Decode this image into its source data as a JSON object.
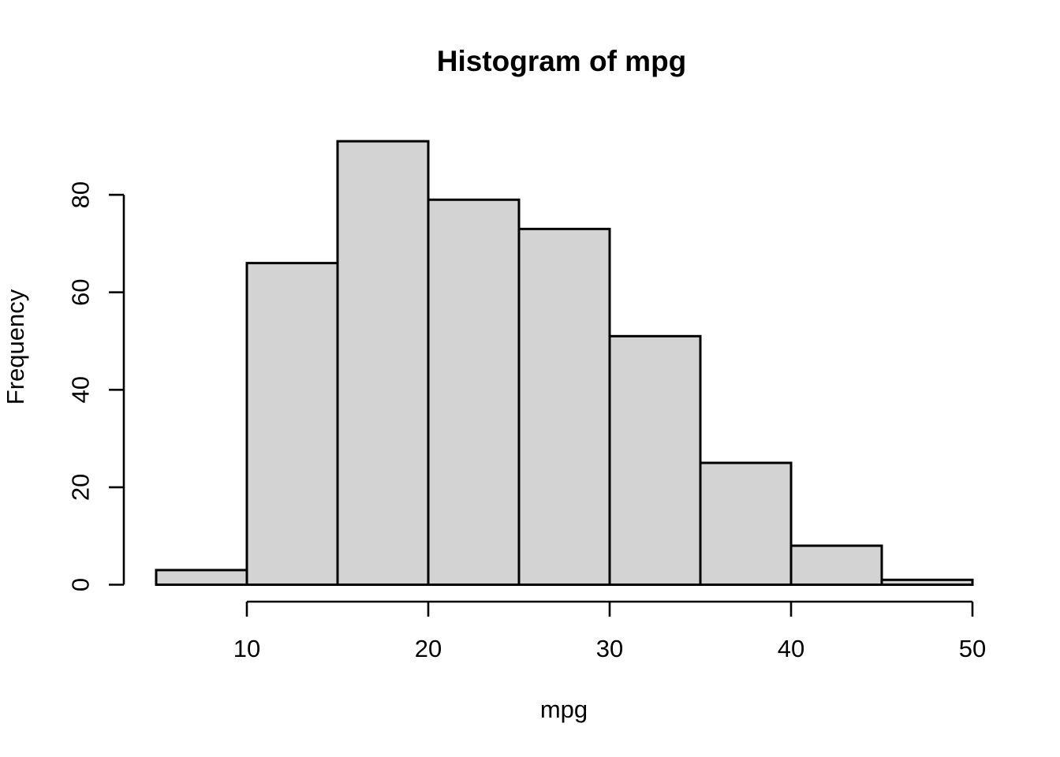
{
  "page": {
    "background_color": "#ffffff"
  },
  "chart_data": {
    "type": "bar",
    "subtype": "histogram",
    "title": "Histogram of mpg",
    "xlabel": "mpg",
    "ylabel": "Frequency",
    "bin_edges": [
      5,
      10,
      15,
      20,
      25,
      30,
      35,
      40,
      45,
      50
    ],
    "counts": [
      3,
      66,
      91,
      79,
      73,
      51,
      25,
      8,
      1
    ],
    "x_ticks": [
      "10",
      "20",
      "30",
      "40",
      "50"
    ],
    "x_tick_values": [
      10,
      20,
      30,
      40,
      50
    ],
    "y_ticks": [
      "0",
      "20",
      "40",
      "60",
      "80"
    ],
    "y_tick_values": [
      0,
      20,
      40,
      60,
      80
    ],
    "xlim": [
      5,
      50
    ],
    "ylim": [
      0,
      91
    ],
    "grid": false,
    "legend_position": "none",
    "bar_fill_color": "#d3d3d3",
    "bar_stroke_color": "#000000",
    "axis_color": "#000000",
    "text_color": "#000000"
  }
}
